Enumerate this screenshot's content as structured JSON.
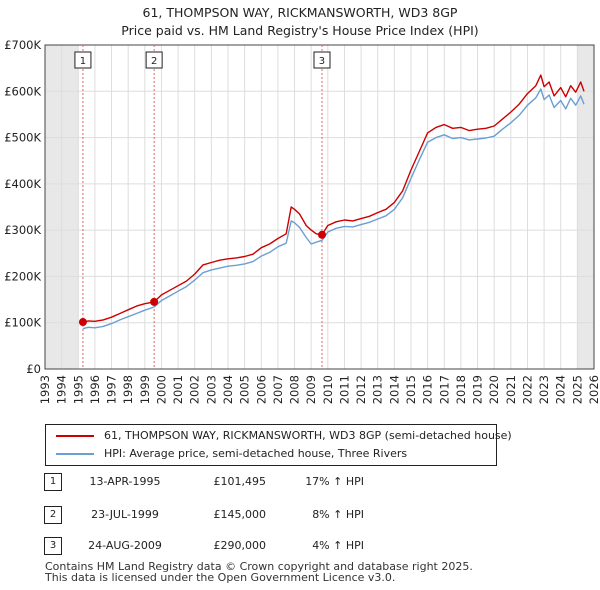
{
  "title": {
    "line1": "61, THOMPSON WAY, RICKMANSWORTH, WD3 8GP",
    "line2": "Price paid vs. HM Land Registry's House Price Index (HPI)"
  },
  "chart_data": {
    "type": "line",
    "ylim": [
      0,
      700000
    ],
    "xlim": [
      1993,
      2026
    ],
    "y_ticks": [
      0,
      100000,
      200000,
      300000,
      400000,
      500000,
      600000,
      700000
    ],
    "y_tick_labels": [
      "£0",
      "£100K",
      "£200K",
      "£300K",
      "£400K",
      "£500K",
      "£600K",
      "£700K"
    ],
    "x_ticks": [
      1993,
      1994,
      1995,
      1996,
      1997,
      1998,
      1999,
      2000,
      2001,
      2002,
      2003,
      2004,
      2005,
      2006,
      2007,
      2008,
      2009,
      2010,
      2011,
      2012,
      2013,
      2014,
      2015,
      2016,
      2017,
      2018,
      2019,
      2020,
      2021,
      2022,
      2023,
      2024,
      2025,
      2026
    ],
    "series": [
      {
        "name": "61, THOMPSON WAY, RICKMANSWORTH, WD3 8GP (semi-detached house)",
        "color": "#cc0000",
        "x": [
          1995.28,
          1995.6,
          1996,
          1996.5,
          1997,
          1997.5,
          1998,
          1998.5,
          1999,
          1999.56,
          2000,
          2000.5,
          2001,
          2001.5,
          2002,
          2002.5,
          2003,
          2003.5,
          2004,
          2004.5,
          2005,
          2005.5,
          2006,
          2006.5,
          2007,
          2007.5,
          2007.8,
          2008,
          2008.3,
          2008.7,
          2009,
          2009.3,
          2009.65,
          2010,
          2010.5,
          2011,
          2011.5,
          2012,
          2012.5,
          2013,
          2013.5,
          2014,
          2014.5,
          2015,
          2015.5,
          2016,
          2016.5,
          2017,
          2017.5,
          2018,
          2018.5,
          2019,
          2019.5,
          2020,
          2020.5,
          2021,
          2021.5,
          2022,
          2022.5,
          2022.8,
          2023,
          2023.3,
          2023.6,
          2024,
          2024.3,
          2024.6,
          2024.9,
          2025.2,
          2025.4
        ],
        "y": [
          101495,
          104000,
          103000,
          106000,
          112000,
          120000,
          128000,
          136000,
          141000,
          145000,
          160000,
          170000,
          180000,
          190000,
          205000,
          225000,
          230000,
          235000,
          238000,
          240000,
          243000,
          248000,
          262000,
          270000,
          282000,
          292000,
          350000,
          345000,
          335000,
          310000,
          300000,
          292000,
          290000,
          310000,
          318000,
          322000,
          320000,
          325000,
          330000,
          338000,
          345000,
          360000,
          385000,
          430000,
          470000,
          510000,
          522000,
          528000,
          520000,
          522000,
          515000,
          518000,
          520000,
          525000,
          540000,
          555000,
          572000,
          595000,
          612000,
          635000,
          610000,
          620000,
          590000,
          608000,
          588000,
          612000,
          598000,
          620000,
          600000
        ]
      },
      {
        "name": "HPI: Average price, semi-detached house, Three Rivers",
        "color": "#6a9fd4",
        "x": [
          1995.28,
          1995.6,
          1996,
          1996.5,
          1997,
          1997.5,
          1998,
          1998.5,
          1999,
          1999.56,
          2000,
          2000.5,
          2001,
          2001.5,
          2002,
          2002.5,
          2003,
          2003.5,
          2004,
          2004.5,
          2005,
          2005.5,
          2006,
          2006.5,
          2007,
          2007.5,
          2007.8,
          2008,
          2008.3,
          2008.7,
          2009,
          2009.3,
          2009.65,
          2010,
          2010.5,
          2011,
          2011.5,
          2012,
          2012.5,
          2013,
          2013.5,
          2014,
          2014.5,
          2015,
          2015.5,
          2016,
          2016.5,
          2017,
          2017.5,
          2018,
          2018.5,
          2019,
          2019.5,
          2020,
          2020.5,
          2021,
          2021.5,
          2022,
          2022.5,
          2022.8,
          2023,
          2023.3,
          2023.6,
          2024,
          2024.3,
          2024.6,
          2024.9,
          2025.2,
          2025.4
        ],
        "y": [
          87000,
          90000,
          89000,
          92000,
          98000,
          106000,
          113000,
          120000,
          127000,
          134000,
          148000,
          158000,
          168000,
          178000,
          192000,
          208000,
          214000,
          218000,
          222000,
          224000,
          227000,
          232000,
          244000,
          252000,
          264000,
          272000,
          320000,
          316000,
          306000,
          284000,
          270000,
          274000,
          278000,
          296000,
          304000,
          308000,
          307000,
          312000,
          317000,
          324000,
          331000,
          345000,
          370000,
          412000,
          452000,
          490000,
          500000,
          506000,
          498000,
          500000,
          495000,
          497000,
          499000,
          503000,
          518000,
          532000,
          548000,
          570000,
          586000,
          605000,
          582000,
          592000,
          565000,
          580000,
          562000,
          585000,
          570000,
          590000,
          572000
        ]
      }
    ],
    "sales": [
      {
        "label": "1",
        "x": 1995.28,
        "price": 101495
      },
      {
        "label": "2",
        "x": 1999.56,
        "price": 145000
      },
      {
        "label": "3",
        "x": 2009.65,
        "price": 290000
      }
    ],
    "shaded_ranges": [
      [
        1993,
        1995.0
      ],
      [
        2025.0,
        2026
      ]
    ]
  },
  "legend": {
    "red_label": "61, THOMPSON WAY, RICKMANSWORTH, WD3 8GP (semi-detached house)",
    "blue_label": "HPI: Average price, semi-detached house, Three Rivers"
  },
  "table": [
    {
      "num": "1",
      "date": "13-APR-1995",
      "price": "£101,495",
      "hpi": "17% ↑ HPI"
    },
    {
      "num": "2",
      "date": "23-JUL-1999",
      "price": "£145,000",
      "hpi": "8% ↑ HPI"
    },
    {
      "num": "3",
      "date": "24-AUG-2009",
      "price": "£290,000",
      "hpi": "4% ↑ HPI"
    }
  ],
  "footer": {
    "line1": "Contains HM Land Registry data © Crown copyright and database right 2025.",
    "line2": "This data is licensed under the Open Government Licence v3.0."
  }
}
